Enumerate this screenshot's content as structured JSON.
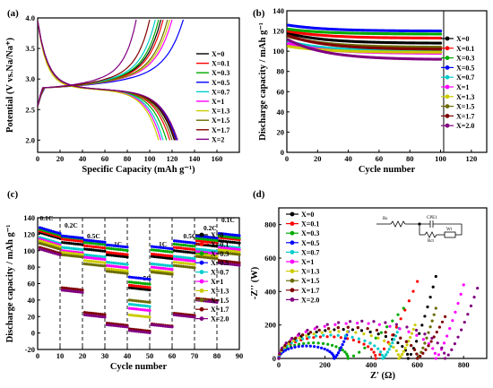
{
  "chart_data": [
    {
      "panel": "(a)",
      "type": "line",
      "xlabel": "Specific Capacity (mAh g⁻¹)",
      "ylabel": "Potential (V vs.Na/Na⁺)",
      "xlim": [
        0,
        180
      ],
      "ylim": [
        1.8,
        4.0
      ],
      "xticks": [
        "0",
        "20",
        "40",
        "60",
        "80",
        "100",
        "120",
        "140",
        "160"
      ],
      "yticks": [
        "2.0",
        "2.5",
        "3.0",
        "3.5",
        "4.0"
      ],
      "legend": [
        "X=0",
        "X=0.1",
        "X=0.3",
        "X=0.5",
        "X=0.7",
        "X=1",
        "X=1.3",
        "X=1.5",
        "X=1.7",
        "X=2"
      ],
      "colors": [
        "#000000",
        "#ff0000",
        "#00aa00",
        "#0000ff",
        "#00cccc",
        "#ff00ff",
        "#cccc00",
        "#6b6b00",
        "#800000",
        "#800080"
      ],
      "series": [
        {
          "name": "X=0",
          "charge_end": 110,
          "discharge_end": 122
        },
        {
          "name": "X=0.1",
          "charge_end": 112,
          "discharge_end": 118
        },
        {
          "name": "X=0.3",
          "charge_end": 108,
          "discharge_end": 115
        },
        {
          "name": "X=0.5",
          "charge_end": 130,
          "discharge_end": 124
        },
        {
          "name": "X=0.7",
          "charge_end": 105,
          "discharge_end": 112
        },
        {
          "name": "X=1",
          "charge_end": 120,
          "discharge_end": 110
        },
        {
          "name": "X=1.3",
          "charge_end": 118,
          "discharge_end": 108
        },
        {
          "name": "X=1.5",
          "charge_end": 116,
          "discharge_end": 120
        },
        {
          "name": "X=1.7",
          "charge_end": 100,
          "discharge_end": 123
        },
        {
          "name": "X=2",
          "charge_end": 88,
          "discharge_end": 125
        }
      ]
    },
    {
      "panel": "(b)",
      "type": "scatter",
      "xlabel": "Cycle number",
      "ylabel": "Discharge capacity / mAh g⁻¹",
      "xlim": [
        0,
        130
      ],
      "ylim": [
        0,
        140
      ],
      "xticks": [
        "0",
        "20",
        "40",
        "60",
        "80",
        "100",
        "120"
      ],
      "yticks": [
        "0",
        "20",
        "40",
        "60",
        "80",
        "100",
        "120",
        "140"
      ],
      "legend": [
        "X=0",
        "X=0.1",
        "X=0.3",
        "X=0.5",
        "X=0.7",
        "X=1",
        "X=1.3",
        "X=1.5",
        "X=1.7",
        "X=2.0"
      ],
      "series": [
        {
          "name": "X=0",
          "start": 118,
          "end": 108
        },
        {
          "name": "X=0.1",
          "start": 120,
          "end": 113
        },
        {
          "name": "X=0.3",
          "start": 122,
          "end": 117
        },
        {
          "name": "X=0.5",
          "start": 126,
          "end": 120
        },
        {
          "name": "X=0.7",
          "start": 110,
          "end": 100
        },
        {
          "name": "X=1",
          "start": 108,
          "end": 98
        },
        {
          "name": "X=1.3",
          "start": 105,
          "end": 99
        },
        {
          "name": "X=1.5",
          "start": 115,
          "end": 104
        },
        {
          "name": "X=1.7",
          "start": 116,
          "end": 102
        },
        {
          "name": "X=2.0",
          "start": 112,
          "end": 92
        }
      ]
    },
    {
      "panel": "(c)",
      "type": "scatter",
      "xlabel": "Cycle number",
      "ylabel": "Discharge capacity / mAh g⁻¹",
      "xlim": [
        0,
        90
      ],
      "ylim": [
        -20,
        140
      ],
      "xticks": [
        "0",
        "10",
        "20",
        "30",
        "40",
        "50",
        "60",
        "70",
        "80",
        "90"
      ],
      "yticks": [
        "-20",
        "0",
        "20",
        "40",
        "60",
        "80",
        "100",
        "120",
        "140"
      ],
      "rate_labels": [
        "0.1C",
        "0.2C",
        "0.5C",
        "1C",
        "5C",
        "1C",
        "0.5C",
        "0.2C",
        "0.1C"
      ],
      "legend": [
        "X=0",
        "X=0.1",
        "X=0.3",
        "X=0.5",
        "X=0.7",
        "X=1",
        "X=1.3",
        "X=1.5",
        "X=1.7",
        "X=2.0"
      ],
      "series": [
        {
          "name": "X=0",
          "values": [
            118,
            110,
            102,
            95,
            55,
            93,
            100,
            108,
            112
          ]
        },
        {
          "name": "X=0.1",
          "values": [
            120,
            114,
            106,
            98,
            58,
            96,
            104,
            112,
            116
          ]
        },
        {
          "name": "X=0.3",
          "values": [
            122,
            117,
            110,
            103,
            62,
            101,
            108,
            115,
            118
          ]
        },
        {
          "name": "X=0.5",
          "values": [
            124,
            118,
            113,
            107,
            68,
            105,
            112,
            118,
            121
          ]
        },
        {
          "name": "X=0.7",
          "values": [
            112,
            104,
            95,
            86,
            35,
            84,
            93,
            102,
            106
          ]
        },
        {
          "name": "X=1",
          "values": [
            110,
            100,
            92,
            82,
            30,
            80,
            90,
            99,
            104
          ]
        },
        {
          "name": "X=1.3",
          "values": [
            108,
            98,
            88,
            78,
            22,
            76,
            86,
            96,
            101
          ]
        },
        {
          "name": "X=1.5",
          "values": [
            105,
            95,
            84,
            75,
            40,
            74,
            82,
            93,
            98
          ]
        },
        {
          "name": "X=1.7",
          "values": [
            100,
            55,
            25,
            12,
            5,
            11,
            24,
            42,
            88
          ]
        },
        {
          "name": "X=2.0",
          "values": [
            98,
            52,
            22,
            10,
            3,
            10,
            22,
            40,
            85
          ]
        }
      ]
    },
    {
      "panel": "(d)",
      "type": "scatter",
      "xlabel": "Z' (Ω)",
      "ylabel": "-Z'' (W)",
      "xlim": [
        0,
        900
      ],
      "ylim": [
        0,
        900
      ],
      "xticks": [
        "0",
        "200",
        "400",
        "600",
        "800"
      ],
      "yticks": [
        "0",
        "200",
        "400",
        "600",
        "800"
      ],
      "legend": [
        "X=0",
        "X=0.1",
        "X=0.3",
        "X=0.5",
        "X=0.7",
        "X=1",
        "X=1.3",
        "X=1.5",
        "X=1.7",
        "X=2.0"
      ],
      "circuit_labels": [
        "Rs",
        "CPE1",
        "Rct",
        "Wt"
      ],
      "series": [
        {
          "name": "X=0",
          "arc_end": 560,
          "tail_end": [
            680,
            490
          ]
        },
        {
          "name": "X=0.1",
          "arc_end": 420,
          "tail_end": [
            600,
            460
          ]
        },
        {
          "name": "X=0.3",
          "arc_end": 300,
          "tail_end": [
            540,
            300
          ]
        },
        {
          "name": "X=0.5",
          "arc_end": 240,
          "tail_end": [
            300,
            160
          ]
        },
        {
          "name": "X=0.7",
          "arc_end": 450,
          "tail_end": [
            520,
            180
          ]
        },
        {
          "name": "X=1",
          "arc_end": 680,
          "tail_end": [
            800,
            440
          ]
        },
        {
          "name": "X=1.3",
          "arc_end": 520,
          "tail_end": [
            590,
            200
          ]
        },
        {
          "name": "X=1.5",
          "arc_end": 600,
          "tail_end": [
            680,
            300
          ]
        },
        {
          "name": "X=1.7",
          "arc_end": 600,
          "tail_end": [
            720,
            250
          ]
        },
        {
          "name": "X=2.0",
          "arc_end": 720,
          "tail_end": [
            860,
            420
          ]
        }
      ]
    }
  ]
}
